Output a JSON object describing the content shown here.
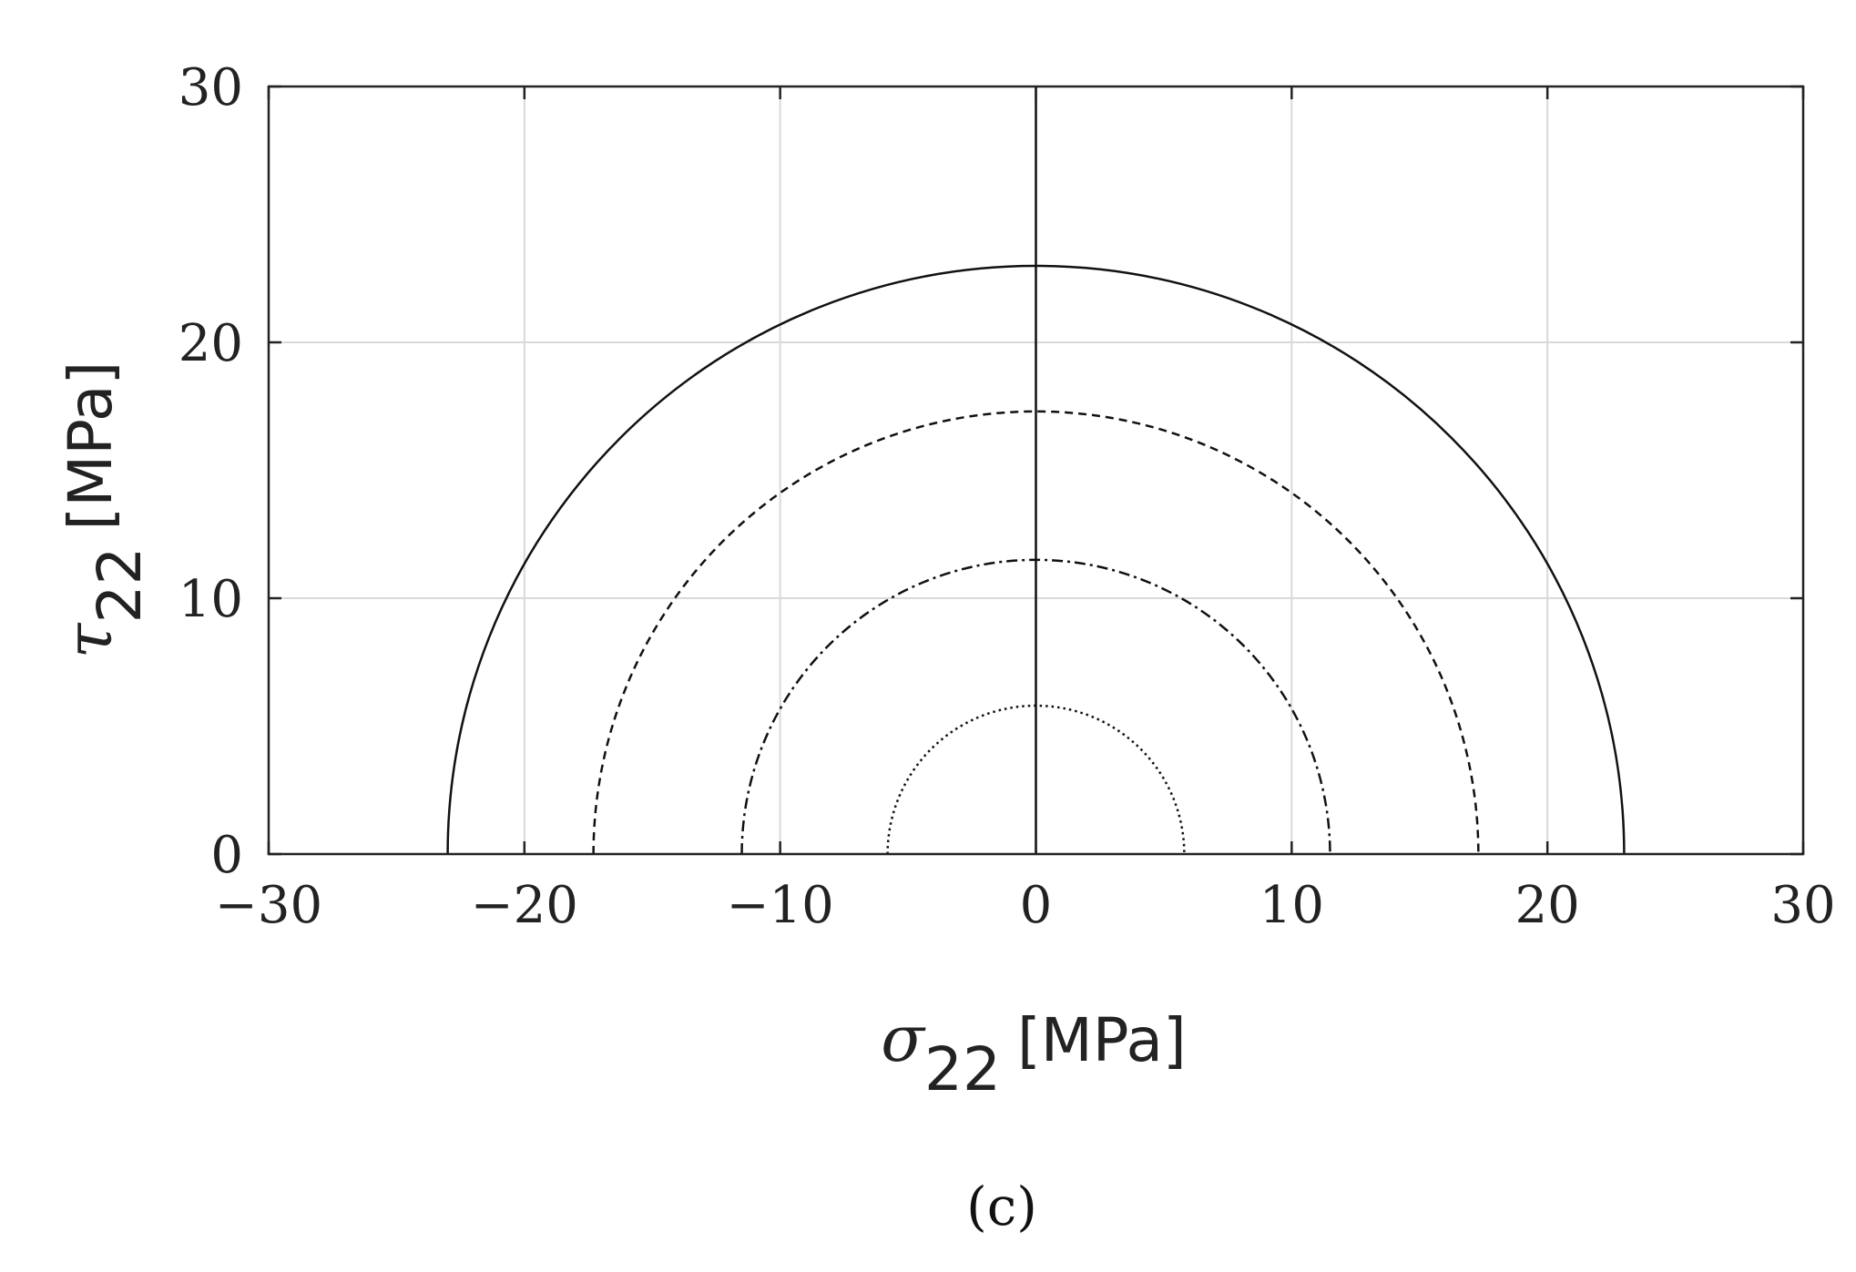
{
  "chart_data": {
    "type": "line",
    "title": "",
    "caption": "(c)",
    "xlabel": {
      "symbol": "σ",
      "subscript": "22",
      "unit": "[MPa]"
    },
    "ylabel": {
      "symbol": "τ",
      "subscript": "22",
      "unit": "[MPa]"
    },
    "xlim": [
      -30,
      30
    ],
    "ylim": [
      0,
      30
    ],
    "xticks": [
      -30,
      -20,
      -10,
      0,
      10,
      20,
      30
    ],
    "xtick_labels": [
      "−30",
      "−20",
      "−10",
      "0",
      "10",
      "20",
      "30"
    ],
    "yticks": [
      0,
      10,
      20,
      30
    ],
    "ytick_labels": [
      "0",
      "10",
      "20",
      "30"
    ],
    "grid": true,
    "reference_line": {
      "x": 0
    },
    "series": [
      {
        "radius": 23.0,
        "style": "solid"
      },
      {
        "radius": 17.3,
        "style": "dashed"
      },
      {
        "radius": 11.5,
        "style": "dashdot"
      },
      {
        "radius": 5.8,
        "style": "dotted"
      }
    ],
    "colors": {
      "line": "#111111",
      "grid": "#d9d9d9",
      "axes": "#222222"
    }
  }
}
